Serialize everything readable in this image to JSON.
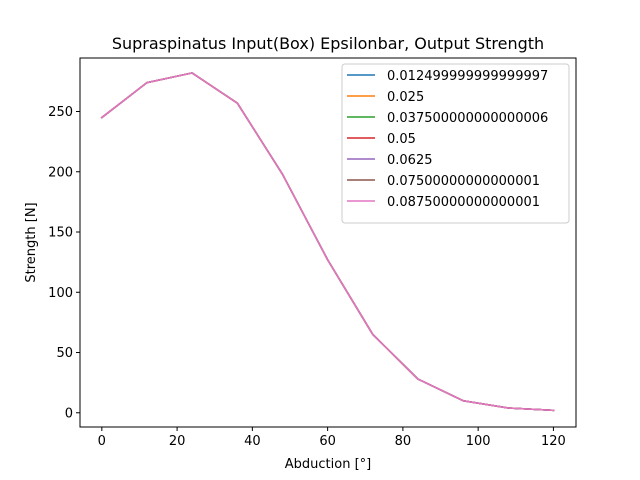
{
  "chart_data": {
    "type": "line",
    "title": "Supraspinatus Input(Box) Epsilonbar, Output Strength",
    "xlabel": "Abduction [°]",
    "ylabel": "Strength [N]",
    "xlim": [
      -5.8,
      126.0
    ],
    "ylim": [
      -11.8,
      294.4
    ],
    "xticks": [
      0,
      20,
      40,
      60,
      80,
      100,
      120
    ],
    "yticks": [
      0,
      50,
      100,
      150,
      200,
      250
    ],
    "grid": false,
    "legend_position": "top-right",
    "x": [
      0,
      12,
      24,
      36,
      48,
      60,
      72,
      84,
      96,
      108,
      120
    ],
    "series": [
      {
        "name": "0.012499999999999997",
        "color": "#1f77b4",
        "values": [
          245,
          274,
          282,
          257,
          198,
          127,
          65,
          28,
          10,
          4,
          2
        ]
      },
      {
        "name": "0.025",
        "color": "#ff7f0e",
        "values": [
          245,
          274,
          282,
          257,
          198,
          127,
          65,
          28,
          10,
          4,
          2
        ]
      },
      {
        "name": "0.037500000000000006",
        "color": "#2ca02c",
        "values": [
          245,
          274,
          282,
          257,
          198,
          127,
          65,
          28,
          10,
          4,
          2
        ]
      },
      {
        "name": "0.05",
        "color": "#d62728",
        "values": [
          245,
          274,
          282,
          257,
          198,
          127,
          65,
          28,
          10,
          4,
          2
        ]
      },
      {
        "name": "0.0625",
        "color": "#9467bd",
        "values": [
          245,
          274,
          282,
          257,
          198,
          127,
          65,
          28,
          10,
          4,
          2
        ]
      },
      {
        "name": "0.07500000000000001",
        "color": "#8c564b",
        "values": [
          245,
          274,
          282,
          257,
          198,
          127,
          65,
          28,
          10,
          4,
          2
        ]
      },
      {
        "name": "0.08750000000000001",
        "color": "#e377c2",
        "values": [
          245,
          274,
          282,
          257,
          198,
          127,
          65,
          28,
          10,
          4,
          2
        ]
      }
    ]
  }
}
